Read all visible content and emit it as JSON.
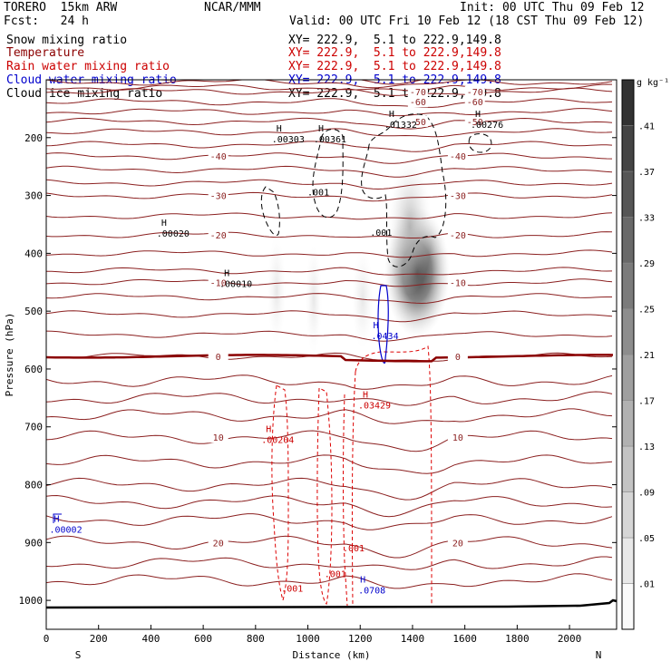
{
  "header": {
    "model": "TORERO  15km ARW",
    "center": "NCAR/MMM",
    "init": "Init: 00 UTC Thu 09 Feb 12",
    "fcst": "Fcst:   24 h",
    "valid": "Valid: 00 UTC Fri 10 Feb 12 (18 CST Thu 09 Feb 12)"
  },
  "legend": [
    {
      "name": "Snow mixing ratio",
      "xy": "XY= 222.9,  5.1 to 222.9,149.8",
      "color": "#000000",
      "xycolor": "#000000"
    },
    {
      "name": "Temperature",
      "xy": "XY= 222.9,  5.1 to 222.9,149.8",
      "color": "#8b0000",
      "xycolor": "#cc0000"
    },
    {
      "name": "Rain water mixing ratio",
      "xy": "XY= 222.9,  5.1 to 222.9,149.8",
      "color": "#cc0000",
      "xycolor": "#cc0000"
    },
    {
      "name": "Cloud water mixing ratio",
      "xy": "XY= 222.9,  5.1 to 222.9,149.8",
      "color": "#0000cc",
      "xycolor": "#0000cc"
    },
    {
      "name": "Cloud ice mixing ratio",
      "xy": "XY= 222.9,  5.1 to 222.9,149.8",
      "color": "#000000",
      "xycolor": "#000000"
    }
  ],
  "chart_data": {
    "type": "cross-section",
    "xlabel": "Distance (km)",
    "ylabel": "Pressure (hPa)",
    "xlim": [
      0,
      2180
    ],
    "ylim": [
      1050,
      100
    ],
    "x_ticks": [
      0,
      200,
      400,
      600,
      800,
      1000,
      1200,
      1400,
      1600,
      1800,
      2000
    ],
    "y_ticks": [
      200,
      300,
      400,
      500,
      600,
      700,
      800,
      900,
      1000
    ],
    "end_labels": {
      "left": "S",
      "right": "N"
    },
    "colorbar": {
      "unit": "g kg⁻¹",
      "ticks": [
        ".01",
        ".05",
        ".09",
        ".13",
        ".17",
        ".21",
        ".25",
        ".29",
        ".33",
        ".37",
        ".41"
      ]
    },
    "temperature_isotherms": [
      {
        "label": "-70",
        "p": 120
      },
      {
        "label": "-60",
        "p": 138
      },
      {
        "label": "-50",
        "p": 172
      },
      {
        "label": "-40",
        "p": 232
      },
      {
        "label": "-30",
        "p": 300
      },
      {
        "label": "-20",
        "p": 368
      },
      {
        "label": "-10",
        "p": 450
      },
      {
        "label": "0",
        "p": 578
      },
      {
        "label": "10",
        "p": 718
      },
      {
        "label": "20",
        "p": 900
      }
    ],
    "maxima": [
      {
        "field": "snow",
        "value": ".00303",
        "x": 890,
        "p": 205
      },
      {
        "field": "snow",
        "value": ".00361",
        "x": 1050,
        "p": 205
      },
      {
        "field": "snow",
        "value": ".01332",
        "x": 1320,
        "p": 180
      },
      {
        "field": "snow",
        "value": ".00276",
        "x": 1650,
        "p": 180
      },
      {
        "field": "snow",
        "value": ".00020",
        "x": 450,
        "p": 368
      },
      {
        "field": "snow",
        "value": ".00010",
        "x": 690,
        "p": 455
      },
      {
        "field": "cloud water",
        "value": ".0434",
        "x": 1260,
        "p": 545
      },
      {
        "field": "rain",
        "value": ".03429",
        "x": 1220,
        "p": 665
      },
      {
        "field": "rain",
        "value": ".00204",
        "x": 850,
        "p": 725
      },
      {
        "field": "cloud water",
        "value": ".0708",
        "x": 1210,
        "p": 985
      },
      {
        "field": "cloud water",
        "value": ".00002",
        "x": 40,
        "p": 880
      }
    ],
    "contour_labels": [
      {
        "text": ".001",
        "field": "snow",
        "x": 1040,
        "p": 300
      },
      {
        "text": ".001",
        "field": "snow",
        "x": 1280,
        "p": 370
      },
      {
        "text": ".001",
        "field": "rain",
        "x": 940,
        "p": 985
      },
      {
        "text": ".001",
        "field": "rain",
        "x": 1105,
        "p": 960
      },
      {
        "text": ".001",
        "field": "rain",
        "x": 1175,
        "p": 915
      }
    ],
    "shading": [
      {
        "x": 1440,
        "p": 420,
        "value": 0.41
      },
      {
        "x": 1400,
        "p": 330,
        "value": 0.25
      },
      {
        "x": 880,
        "p": 440,
        "value": 0.05
      },
      {
        "x": 1060,
        "p": 470,
        "value": 0.02
      }
    ]
  },
  "icons": {
    "shading": "grey-shading",
    "contour": "contour-line"
  }
}
